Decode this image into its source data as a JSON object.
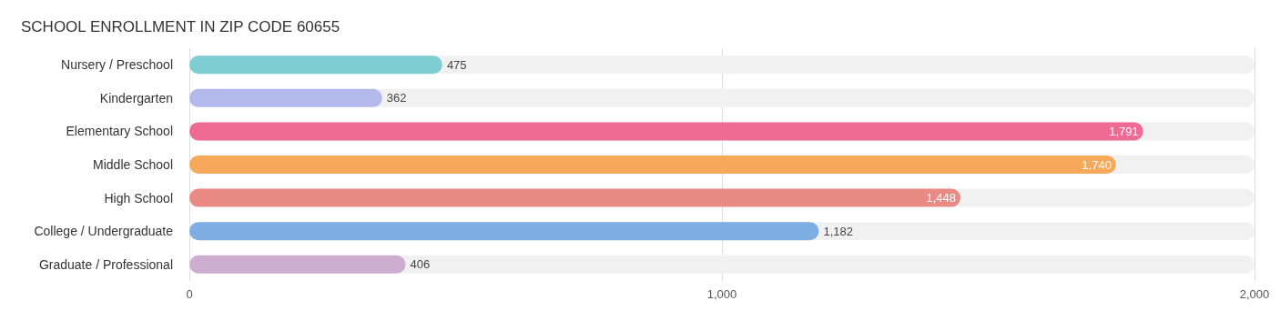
{
  "chart_data": {
    "type": "bar",
    "orientation": "horizontal",
    "title": "SCHOOL ENROLLMENT IN ZIP CODE 60655",
    "categories": [
      "Nursery / Preschool",
      "Kindergarten",
      "Elementary School",
      "Middle School",
      "High School",
      "College / Undergraduate",
      "Graduate / Professional"
    ],
    "values": [
      475,
      362,
      1791,
      1740,
      1448,
      1182,
      406
    ],
    "colors": [
      "#7ecdd3",
      "#b3b9ea",
      "#f06b93",
      "#f6a95b",
      "#ea8a85",
      "#7eaee3",
      "#cdaed0"
    ],
    "xlim": [
      0,
      2000
    ],
    "xticks": [
      {
        "value": 0,
        "label": "0"
      },
      {
        "value": 1000,
        "label": "1,000"
      },
      {
        "value": 2000,
        "label": "2,000"
      }
    ],
    "value_labels": [
      "475",
      "362",
      "1,791",
      "1,740",
      "1,448",
      "1,182",
      "406"
    ],
    "grid": "x"
  }
}
